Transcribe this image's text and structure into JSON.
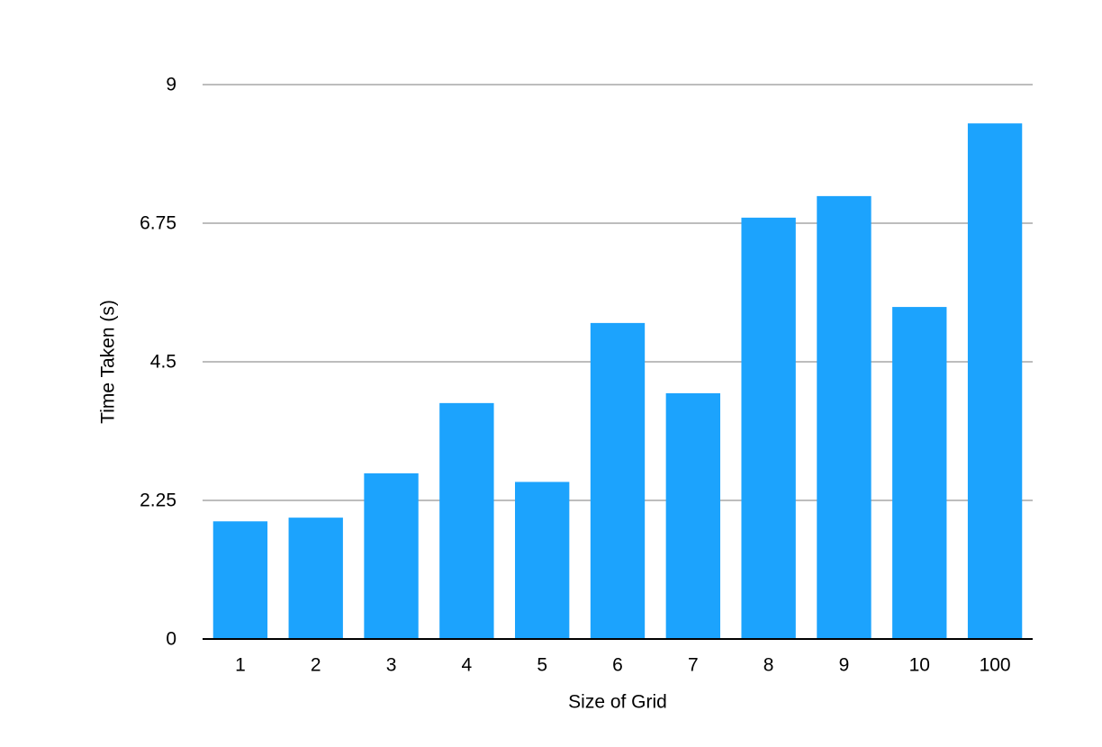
{
  "chart_data": {
    "type": "bar",
    "title": "",
    "xlabel": "Size of Grid",
    "ylabel": "Time Taken (s)",
    "categories": [
      "1",
      "2",
      "3",
      "4",
      "5",
      "6",
      "7",
      "8",
      "9",
      "10",
      "100"
    ],
    "values": [
      1.91,
      1.97,
      2.69,
      3.83,
      2.55,
      5.13,
      3.99,
      6.84,
      7.19,
      5.39,
      8.37
    ],
    "ylim": [
      0,
      9
    ],
    "yticks": [
      0,
      2.25,
      4.5,
      6.75,
      9
    ],
    "ytick_labels": [
      "0",
      "2.25",
      "4.5",
      "6.75",
      "9"
    ],
    "grid": true,
    "legend": "none",
    "colors": {
      "bar": "#1ca3fd",
      "grid": "#bdbdbd",
      "axis": "#000000"
    }
  }
}
